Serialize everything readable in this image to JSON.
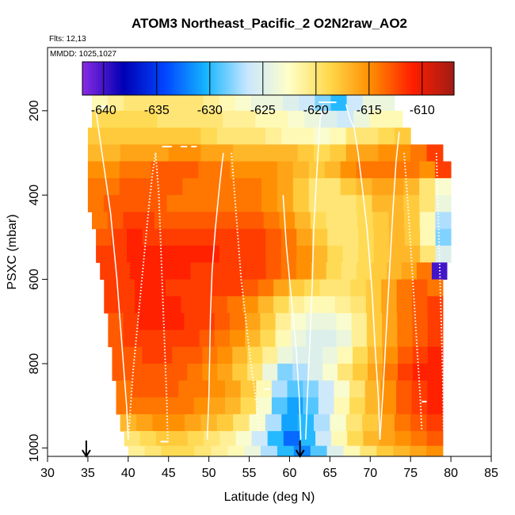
{
  "chart_data": {
    "type": "heatmap",
    "title": "ATOM3 Northeast_Pacific_2 O2N2raw_AO2",
    "flights_text": "Flts: 12,13",
    "mmdd_text": "MMDD: 1025,1027",
    "xlabel": "Latitude (deg N)",
    "ylabel": "PSXC (mbar)",
    "xlim": [
      30,
      85
    ],
    "ylim": [
      1020,
      50
    ],
    "x_ticks": [
      30,
      35,
      40,
      45,
      50,
      55,
      60,
      65,
      70,
      75,
      80,
      85
    ],
    "y_ticks": [
      200,
      400,
      600,
      800,
      1000
    ],
    "colorbar": {
      "range": [
        -642,
        -607
      ],
      "ticks": [
        -640,
        -635,
        -630,
        -625,
        -620,
        -615,
        -610
      ],
      "colors": [
        "#8a2be2",
        "#0000b4",
        "#0046ff",
        "#16b6ff",
        "#c8e6ff",
        "#ffffc8",
        "#ffd84a",
        "#ff8c00",
        "#ff1e00",
        "#a01c14"
      ]
    },
    "arrows_lat": [
      34.8,
      61.3
    ],
    "pressure_levels": [
      180,
      220,
      260,
      300,
      340,
      380,
      420,
      460,
      500,
      540,
      580,
      620,
      660,
      700,
      740,
      780,
      820,
      860,
      900,
      940,
      980,
      1010
    ],
    "lat_edges": [
      35,
      37,
      39,
      41,
      43,
      45,
      47,
      49,
      51,
      53,
      55,
      57,
      59,
      61,
      63,
      65,
      67,
      69,
      71,
      73,
      75,
      77,
      79,
      80
    ],
    "rows": [
      {
        "p": 180,
        "lat_start": 35.5,
        "lat_end": 73,
        "values": [
          -622,
          -621,
          -620,
          -620,
          -620,
          -620,
          -620,
          -621,
          -622,
          -623,
          -624,
          -624,
          -625,
          -626,
          -628,
          -630,
          -626,
          -624,
          -624
        ]
      },
      {
        "p": 220,
        "lat_start": 35.5,
        "lat_end": 74,
        "values": [
          -619,
          -619,
          -619,
          -619,
          -620,
          -620,
          -620,
          -620,
          -621,
          -621,
          -622,
          -622,
          -623,
          -624,
          -625,
          -626,
          -624,
          -622,
          -622
        ]
      },
      {
        "p": 260,
        "lat_start": 35,
        "lat_end": 75,
        "values": [
          -618,
          -618,
          -618,
          -618,
          -618,
          -618,
          -618,
          -619,
          -620,
          -620,
          -620,
          -621,
          -622,
          -622,
          -623,
          -622,
          -620,
          -620,
          -619,
          -618
        ]
      },
      {
        "p": 300,
        "lat_start": 35,
        "lat_end": 79,
        "values": [
          -617,
          -617,
          -616,
          -616,
          -616,
          -615,
          -615,
          -616,
          -616,
          -617,
          -617,
          -617,
          -617,
          -618,
          -619,
          -618,
          -616,
          -616,
          -615,
          -615,
          -614,
          -612
        ]
      },
      {
        "p": 340,
        "lat_start": 35,
        "lat_end": 80,
        "values": [
          -615,
          -615,
          -614,
          -614,
          -613,
          -613,
          -613,
          -614,
          -614,
          -615,
          -615,
          -615,
          -616,
          -617,
          -618,
          -617,
          -615,
          -614,
          -614,
          -614,
          -614,
          -615,
          -612
        ]
      },
      {
        "p": 380,
        "lat_start": 35,
        "lat_end": 80,
        "values": [
          -614,
          -614,
          -613,
          -613,
          -613,
          -613,
          -614,
          -614,
          -614,
          -614,
          -614,
          -615,
          -616,
          -618,
          -620,
          -620,
          -618,
          -617,
          -616,
          -616,
          -617,
          -620,
          -623
        ]
      },
      {
        "p": 420,
        "lat_start": 35,
        "lat_end": 80,
        "values": [
          -614,
          -613,
          -613,
          -613,
          -613,
          -614,
          -614,
          -614,
          -614,
          -614,
          -614,
          -615,
          -616,
          -618,
          -620,
          -620,
          -620,
          -619,
          -617,
          -617,
          -618,
          -620,
          -624
        ]
      },
      {
        "p": 460,
        "lat_start": 35.5,
        "lat_end": 80,
        "values": [
          -614,
          -613,
          -612,
          -612,
          -613,
          -613,
          -613,
          -613,
          -613,
          -613,
          -613,
          -614,
          -615,
          -617,
          -619,
          -620,
          -620,
          -619,
          -618,
          -617,
          -618,
          -622,
          -627
        ]
      },
      {
        "p": 500,
        "lat_start": 36,
        "lat_end": 80,
        "values": [
          -613,
          -612,
          -611,
          -612,
          -612,
          -612,
          -612,
          -612,
          -612,
          -612,
          -612,
          -613,
          -614,
          -616,
          -618,
          -620,
          -620,
          -619,
          -618,
          -617,
          -618,
          -622,
          -628
        ]
      },
      {
        "p": 540,
        "lat_start": 36,
        "lat_end": 80,
        "values": [
          -612,
          -612,
          -611,
          -611,
          -611,
          -611,
          -611,
          -611,
          -612,
          -612,
          -612,
          -613,
          -614,
          -615,
          -617,
          -619,
          -620,
          -619,
          -618,
          -617,
          -617,
          -620,
          -625
        ]
      },
      {
        "p": 580,
        "lat_start": 36.5,
        "lat_end": 79.5,
        "values": [
          -612,
          -612,
          -611,
          -611,
          -611,
          -611,
          -612,
          -612,
          -612,
          -612,
          -612,
          -613,
          -614,
          -615,
          -617,
          -619,
          -620,
          -619,
          -618,
          -617,
          -616,
          -614,
          -640
        ]
      },
      {
        "p": 620,
        "lat_start": 37,
        "lat_end": 79,
        "values": [
          -612,
          -612,
          -611,
          -611,
          -612,
          -612,
          -612,
          -612,
          -612,
          -613,
          -614,
          -616,
          -618,
          -619,
          -620,
          -620,
          -619,
          -618,
          -616,
          -614,
          -613,
          -614
        ]
      },
      {
        "p": 660,
        "lat_start": 37,
        "lat_end": 79,
        "values": [
          -612,
          -612,
          -611,
          -611,
          -611,
          -612,
          -612,
          -613,
          -614,
          -615,
          -617,
          -619,
          -621,
          -622,
          -622,
          -621,
          -620,
          -618,
          -616,
          -614,
          -613,
          -612
        ]
      },
      {
        "p": 700,
        "lat_start": 37.5,
        "lat_end": 79,
        "values": [
          -613,
          -612,
          -611,
          -611,
          -611,
          -612,
          -612,
          -613,
          -614,
          -616,
          -618,
          -621,
          -623,
          -624,
          -624,
          -623,
          -621,
          -618,
          -616,
          -614,
          -613,
          -612
        ]
      },
      {
        "p": 740,
        "lat_start": 37.5,
        "lat_end": 79,
        "values": [
          -613,
          -612,
          -612,
          -612,
          -612,
          -612,
          -613,
          -614,
          -615,
          -617,
          -619,
          -622,
          -624,
          -625,
          -625,
          -624,
          -621,
          -618,
          -616,
          -614,
          -613,
          -612
        ]
      },
      {
        "p": 780,
        "lat_start": 38,
        "lat_end": 79,
        "values": [
          -613,
          -613,
          -612,
          -612,
          -613,
          -613,
          -614,
          -615,
          -617,
          -619,
          -621,
          -624,
          -625,
          -625,
          -624,
          -622,
          -619,
          -617,
          -615,
          -613,
          -612,
          -611
        ]
      },
      {
        "p": 820,
        "lat_start": 38,
        "lat_end": 79,
        "values": [
          -613,
          -613,
          -613,
          -613,
          -613,
          -614,
          -615,
          -616,
          -618,
          -620,
          -624,
          -628,
          -627,
          -625,
          -623,
          -620,
          -618,
          -616,
          -614,
          -612,
          -611,
          -611
        ]
      },
      {
        "p": 860,
        "lat_start": 38.5,
        "lat_end": 79,
        "values": [
          -614,
          -613,
          -613,
          -613,
          -614,
          -614,
          -615,
          -616,
          -618,
          -622,
          -627,
          -629,
          -628,
          -626,
          -623,
          -620,
          -617,
          -615,
          -613,
          -612,
          -611
        ]
      },
      {
        "p": 900,
        "lat_start": 38.5,
        "lat_end": 79,
        "values": [
          -614,
          -614,
          -614,
          -614,
          -614,
          -615,
          -616,
          -617,
          -619,
          -623,
          -629,
          -631,
          -629,
          -626,
          -622,
          -619,
          -617,
          -615,
          -613,
          -612,
          -611
        ]
      },
      {
        "p": 940,
        "lat_start": 39,
        "lat_end": 79,
        "values": [
          -617,
          -616,
          -615,
          -615,
          -616,
          -617,
          -618,
          -620,
          -623,
          -627,
          -631,
          -630,
          -627,
          -623,
          -620,
          -618,
          -616,
          -614,
          -613,
          -612
        ]
      },
      {
        "p": 980,
        "lat_start": 39.5,
        "lat_end": 79,
        "values": [
          -620,
          -619,
          -618,
          -618,
          -619,
          -620,
          -621,
          -623,
          -626,
          -630,
          -633,
          -630,
          -626,
          -622,
          -619,
          -617,
          -616,
          -615,
          -614,
          -613
        ]
      },
      {
        "p": 1010,
        "lat_start": 40,
        "lat_end": 79,
        "values": [
          -621,
          -620,
          -619,
          -619,
          -620,
          -621,
          -622,
          -624,
          -627,
          -630,
          -632,
          -629,
          -625,
          -622,
          -620,
          -618,
          -617,
          -616,
          -615
        ]
      }
    ],
    "profiles": [
      {
        "style": "solid",
        "points": [
          [
            36.0,
            200
          ],
          [
            36.6,
            280
          ],
          [
            37.2,
            360
          ],
          [
            37.8,
            440
          ],
          [
            38.2,
            520
          ],
          [
            38.6,
            600
          ],
          [
            39.0,
            700
          ],
          [
            39.4,
            800
          ],
          [
            39.8,
            900
          ],
          [
            40.0,
            980
          ]
        ]
      },
      {
        "style": "dotted",
        "points": [
          [
            40.0,
            980
          ],
          [
            40.3,
            900
          ],
          [
            40.6,
            820
          ],
          [
            41.0,
            740
          ],
          [
            41.4,
            660
          ],
          [
            41.8,
            580
          ],
          [
            42.2,
            500
          ],
          [
            42.6,
            420
          ],
          [
            43.0,
            350
          ],
          [
            43.4,
            300
          ]
        ]
      },
      {
        "style": "dotted",
        "points": [
          [
            43.4,
            300
          ],
          [
            43.8,
            400
          ],
          [
            44.0,
            500
          ],
          [
            44.2,
            600
          ],
          [
            44.4,
            700
          ],
          [
            44.6,
            800
          ],
          [
            44.8,
            900
          ],
          [
            44.9,
            980
          ]
        ]
      },
      {
        "style": "solid",
        "points": [
          [
            49.8,
            980
          ],
          [
            50.0,
            880
          ],
          [
            50.1,
            780
          ],
          [
            50.2,
            680
          ],
          [
            50.4,
            580
          ],
          [
            50.8,
            480
          ],
          [
            51.2,
            400
          ],
          [
            51.6,
            330
          ],
          [
            51.8,
            300
          ]
        ]
      },
      {
        "style": "dotted",
        "points": [
          [
            52.8,
            300
          ],
          [
            53.2,
            400
          ],
          [
            53.6,
            500
          ],
          [
            54.0,
            600
          ],
          [
            54.6,
            700
          ],
          [
            55.2,
            800
          ],
          [
            55.8,
            880
          ],
          [
            56.2,
            960
          ]
        ]
      },
      {
        "style": "solid",
        "points": [
          [
            59.2,
            400
          ],
          [
            59.6,
            520
          ],
          [
            60.2,
            640
          ],
          [
            60.8,
            760
          ],
          [
            61.2,
            880
          ],
          [
            61.4,
            980
          ]
        ]
      },
      {
        "style": "solid",
        "points": [
          [
            62.0,
            980
          ],
          [
            62.2,
            880
          ],
          [
            62.5,
            760
          ],
          [
            62.8,
            620
          ],
          [
            63.0,
            480
          ],
          [
            63.4,
            340
          ],
          [
            63.8,
            220
          ],
          [
            64.2,
            185
          ]
        ]
      },
      {
        "style": "solid",
        "points": [
          [
            67.0,
            185
          ],
          [
            67.5,
            220
          ],
          [
            68.0,
            240
          ],
          [
            68.5,
            300
          ],
          [
            69.0,
            380
          ],
          [
            69.6,
            480
          ],
          [
            70.2,
            620
          ],
          [
            70.6,
            760
          ],
          [
            71.0,
            880
          ],
          [
            71.2,
            980
          ]
        ]
      },
      {
        "style": "solid",
        "points": [
          [
            71.2,
            980
          ],
          [
            71.6,
            860
          ],
          [
            72.0,
            720
          ],
          [
            72.4,
            580
          ],
          [
            72.8,
            440
          ],
          [
            73.2,
            320
          ],
          [
            73.6,
            250
          ]
        ]
      },
      {
        "style": "dotted",
        "points": [
          [
            74.2,
            300
          ],
          [
            74.6,
            400
          ],
          [
            75.0,
            520
          ],
          [
            75.4,
            640
          ],
          [
            75.8,
            760
          ],
          [
            76.2,
            880
          ],
          [
            76.4,
            960
          ]
        ]
      },
      {
        "style": "dotted",
        "points": [
          [
            78.2,
            300
          ],
          [
            78.4,
            420
          ],
          [
            78.6,
            560
          ],
          [
            78.8,
            700
          ],
          [
            79.0,
            840
          ],
          [
            79.1,
            960
          ]
        ]
      }
    ],
    "level_marks": [
      {
        "lat1": 36.5,
        "lat2": 37.5,
        "p": 190
      },
      {
        "lat1": 44.2,
        "lat2": 45.4,
        "p": 285
      },
      {
        "lat1": 46.5,
        "lat2": 47.3,
        "p": 285
      },
      {
        "lat1": 47.8,
        "lat2": 48.5,
        "p": 285
      },
      {
        "lat1": 63.6,
        "lat2": 65.8,
        "p": 180
      },
      {
        "lat1": 56.8,
        "lat2": 57.6,
        "p": 860
      },
      {
        "lat1": 44.0,
        "lat2": 45.0,
        "p": 985
      },
      {
        "lat1": 76.4,
        "lat2": 77.0,
        "p": 890
      }
    ]
  }
}
